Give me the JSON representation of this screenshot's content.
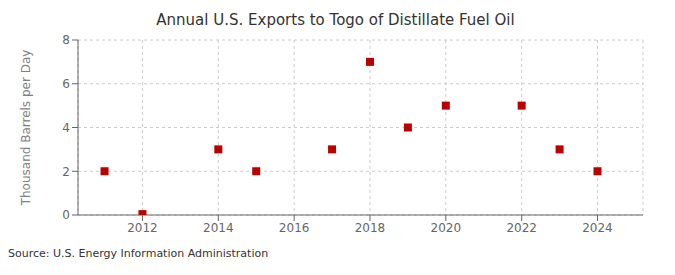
{
  "chart_data": {
    "type": "scatter",
    "title": "Annual U.S. Exports to Togo of Distillate Fuel Oil",
    "y_label": "Thousand Barrels per Day",
    "annotations": [
      "Source: U.S. Energy Information Administration"
    ],
    "x": [
      2011,
      2012,
      2014,
      2015,
      2017,
      2018,
      2019,
      2020,
      2022,
      2023,
      2024
    ],
    "values": [
      2.0,
      0.04,
      3.0,
      2.0,
      3.0,
      7.0,
      4.0,
      5.0,
      5.0,
      3.0,
      2.0
    ],
    "xlim": [
      2010.3,
      2025.2
    ],
    "ylim": [
      0,
      8
    ],
    "xticks": [
      2012,
      2014,
      2016,
      2018,
      2020,
      2022,
      2024
    ],
    "yticks": [
      0,
      2,
      4,
      6,
      8
    ],
    "color": "#bb0000",
    "marker": "square",
    "grid": true
  }
}
